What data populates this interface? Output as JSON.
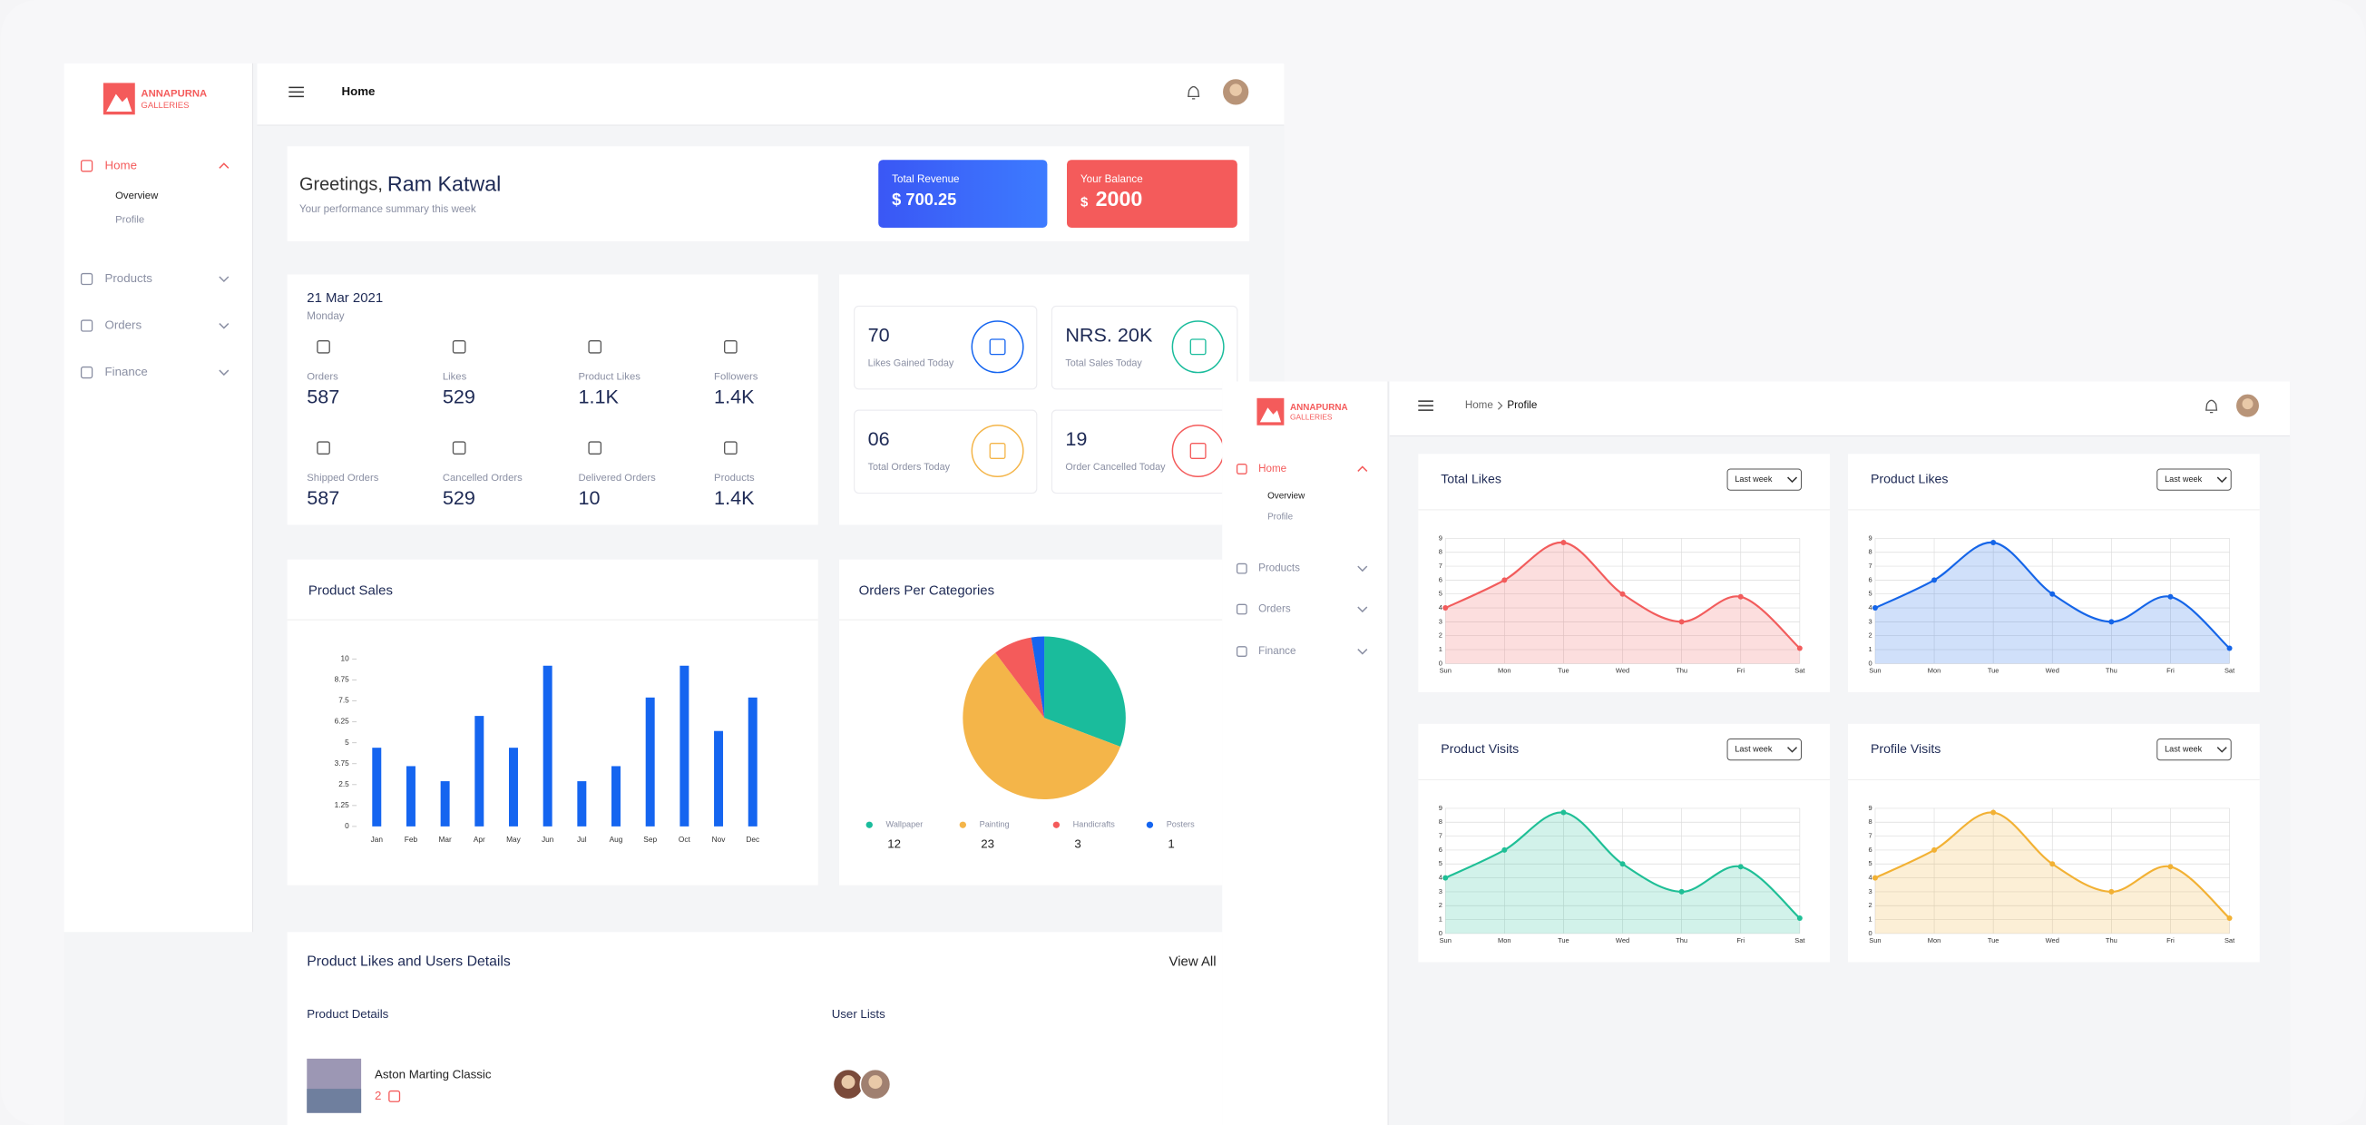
{
  "window1": {
    "logo": {
      "line1": "ANNAPURNA",
      "line2": "GALLERIES"
    },
    "sidebar": {
      "home": "Home",
      "overview": "Overview",
      "profile": "Profile",
      "products": "Products",
      "orders": "Orders",
      "finance": "Finance"
    },
    "header": {
      "page": "Home"
    },
    "greeting": {
      "salutation": "Greetings,",
      "name": "Ram Katwal",
      "subtitle": "Your performance summary this week"
    },
    "revenue": {
      "label": "Total Revenue",
      "amount": "$ 700.25"
    },
    "balance": {
      "label": "Your Balance",
      "currency": "$",
      "amount": "2000"
    },
    "summary": {
      "date": "21 Mar 2021",
      "weekday": "Monday",
      "stats": [
        {
          "label": "Orders",
          "value": "587"
        },
        {
          "label": "Likes",
          "value": "529"
        },
        {
          "label": "Product Likes",
          "value": "1.1K"
        },
        {
          "label": "Followers",
          "value": "1.4K"
        },
        {
          "label": "Shipped Orders",
          "value": "587"
        },
        {
          "label": "Cancelled Orders",
          "value": "529"
        },
        {
          "label": "Delivered Orders",
          "value": "10"
        },
        {
          "label": "Products",
          "value": "1.4K"
        }
      ]
    },
    "today": [
      {
        "value": "70",
        "label": "Likes Gained Today"
      },
      {
        "value": "NRS. 20K",
        "label": "Total Sales Today"
      },
      {
        "value": "06",
        "label": "Total Orders Today"
      },
      {
        "value": "19",
        "label": "Order Cancelled Today"
      }
    ],
    "product_sales": {
      "type": "bar",
      "title": "Product Sales",
      "categories": [
        "Jan",
        "Feb",
        "Mar",
        "Apr",
        "May",
        "Jun",
        "Jul",
        "Aug",
        "Sep",
        "Oct",
        "Nov",
        "Dec"
      ],
      "values": [
        4.7,
        3.6,
        2.7,
        6.6,
        4.7,
        9.6,
        2.7,
        3.6,
        7.7,
        9.6,
        5.7,
        7.7
      ],
      "color": "#1565f0",
      "ylim": [
        0,
        10
      ],
      "yticks": [
        0,
        1.25,
        2.5,
        3.75,
        5,
        6.25,
        7.5,
        8.75,
        10
      ]
    },
    "orders_per_categories": {
      "type": "pie",
      "title": "Orders Per Categories",
      "categories": [
        "Wallpaper",
        "Painting",
        "Handicrafts",
        "Posters"
      ],
      "values": [
        12,
        23,
        3,
        1
      ],
      "colors": [
        "#1abc9c",
        "#f4b549",
        "#f45b5b",
        "#1565f0"
      ]
    },
    "likes_table": {
      "title": "Product Likes and Users Details",
      "action": "View All",
      "headers": [
        "Product Details",
        "User Lists"
      ],
      "rows": [
        {
          "product": "Aston Marting Classic",
          "likes": 2
        }
      ]
    }
  },
  "window2": {
    "logo": {
      "line1": "ANNAPURNA",
      "line2": "GALLERIES"
    },
    "sidebar": {
      "home": "Home",
      "overview": "Overview",
      "profile": "Profile",
      "products": "Products",
      "orders": "Orders",
      "finance": "Finance"
    },
    "breadcrumb": [
      "Home",
      "Profile"
    ],
    "charts": [
      {
        "type": "line",
        "title": "Total Likes",
        "filter": "Last week",
        "categories": [
          "Sun",
          "Mon",
          "Tue",
          "Wed",
          "Thu",
          "Fri",
          "Sat"
        ],
        "values": [
          4,
          6,
          8.7,
          5,
          3,
          4.8,
          1.1
        ],
        "color": "#f25c5c",
        "ylim": [
          0,
          9
        ],
        "yticks": [
          0,
          1,
          2,
          3,
          4,
          5,
          6,
          7,
          8,
          9
        ]
      },
      {
        "type": "line",
        "title": "Product Likes",
        "filter": "Last week",
        "categories": [
          "Sun",
          "Mon",
          "Tue",
          "Wed",
          "Thu",
          "Fri",
          "Sat"
        ],
        "values": [
          4,
          6,
          8.7,
          5,
          3,
          4.8,
          1.1
        ],
        "color": "#1565e8",
        "ylim": [
          0,
          9
        ],
        "yticks": [
          0,
          1,
          2,
          3,
          4,
          5,
          6,
          7,
          8,
          9
        ]
      },
      {
        "type": "line",
        "title": "Product Visits",
        "filter": "Last week",
        "categories": [
          "Sun",
          "Mon",
          "Tue",
          "Wed",
          "Thu",
          "Fri",
          "Sat"
        ],
        "values": [
          4,
          6,
          8.7,
          5,
          3,
          4.8,
          1.1
        ],
        "color": "#1fbf96",
        "ylim": [
          0,
          9
        ],
        "yticks": [
          0,
          1,
          2,
          3,
          4,
          5,
          6,
          7,
          8,
          9
        ]
      },
      {
        "type": "line",
        "title": "Profile Visits",
        "filter": "Last week",
        "categories": [
          "Sun",
          "Mon",
          "Tue",
          "Wed",
          "Thu",
          "Fri",
          "Sat"
        ],
        "values": [
          4,
          6,
          8.7,
          5,
          3,
          4.8,
          1.1
        ],
        "color": "#f2b134",
        "ylim": [
          0,
          9
        ],
        "yticks": [
          0,
          1,
          2,
          3,
          4,
          5,
          6,
          7,
          8,
          9
        ]
      }
    ]
  }
}
